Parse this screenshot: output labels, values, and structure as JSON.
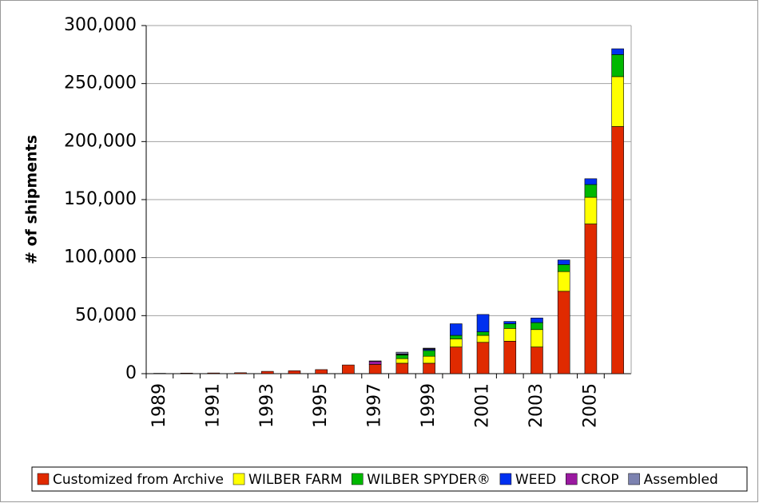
{
  "chart_data": {
    "type": "stacked_bar",
    "y_label": "# of shipments",
    "categories": [
      "1989",
      null,
      "1991",
      null,
      "1993",
      null,
      "1995",
      null,
      "1997",
      null,
      "1999",
      null,
      "2001",
      null,
      "2003",
      null,
      "2005",
      null
    ],
    "series": [
      {
        "name": "Customized from Archive",
        "color": "#e02a00",
        "values": [
          300,
          500,
          600,
          800,
          2000,
          2500,
          3500,
          7500,
          8000,
          9000,
          9000,
          23000,
          27000,
          28000,
          23000,
          71000,
          129000,
          213000
        ]
      },
      {
        "name": "WILBER FARM",
        "color": "#ffff00",
        "values": [
          0,
          0,
          0,
          0,
          0,
          0,
          0,
          0,
          0,
          4000,
          6000,
          7000,
          6000,
          11000,
          15000,
          17000,
          23000,
          43000
        ]
      },
      {
        "name": "WILBER SPYDER®",
        "color": "#00b800",
        "values": [
          0,
          0,
          0,
          0,
          0,
          0,
          0,
          0,
          0,
          3000,
          5000,
          3000,
          3000,
          4000,
          6000,
          6000,
          11000,
          19000
        ]
      },
      {
        "name": "WEED",
        "color": "#0030f0",
        "values": [
          0,
          0,
          0,
          0,
          0,
          0,
          0,
          0,
          0,
          500,
          1000,
          10000,
          15000,
          2000,
          4000,
          4000,
          5000,
          5000
        ]
      },
      {
        "name": "CROP",
        "color": "#9a1aa0",
        "values": [
          0,
          0,
          0,
          0,
          0,
          0,
          0,
          0,
          2500,
          500,
          500,
          0,
          0,
          0,
          0,
          0,
          0,
          0
        ]
      },
      {
        "name": "Assembled",
        "color": "#7c82b0",
        "values": [
          0,
          0,
          0,
          0,
          0,
          0,
          0,
          0,
          500,
          1500,
          500,
          0,
          0,
          0,
          0,
          0,
          0,
          0
        ]
      }
    ],
    "ylim": [
      0,
      300000
    ],
    "yticks": [
      0,
      {
        "value": 50000,
        "label": "50,000"
      },
      {
        "value": 100000,
        "label": "100,000"
      },
      {
        "value": 150000,
        "label": "150,000"
      },
      {
        "value": 200000,
        "label": "200,000"
      },
      {
        "value": 250000,
        "label": "250,000"
      },
      {
        "value": 300000,
        "label": "300,000"
      }
    ],
    "grid": true,
    "legend": "bottom"
  }
}
